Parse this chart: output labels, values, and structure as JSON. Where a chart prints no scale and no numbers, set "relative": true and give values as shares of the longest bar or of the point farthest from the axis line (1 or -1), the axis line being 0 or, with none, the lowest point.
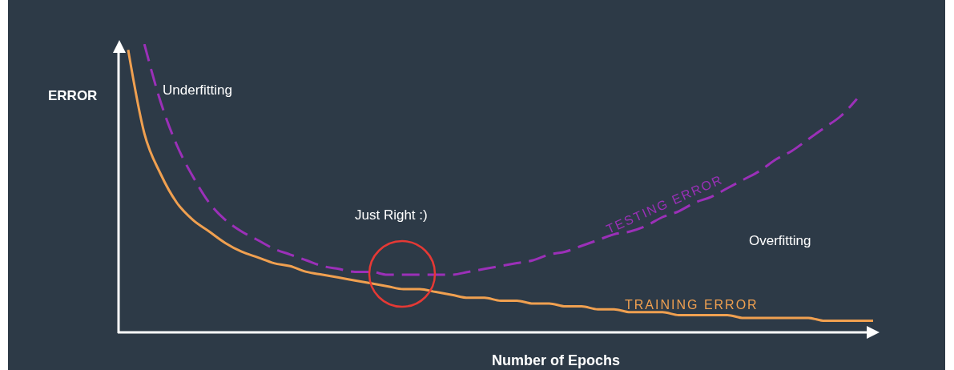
{
  "chart_data": {
    "type": "line",
    "relative": true,
    "xlabel": "Number of Epochs",
    "ylabel": "ERROR",
    "annotations": [
      "Underfitting",
      "Just Right :)",
      "Overfitting"
    ],
    "categories": [
      null,
      null,
      null,
      null,
      null,
      null,
      null,
      null,
      null,
      null,
      null,
      null,
      null,
      null,
      null,
      null,
      null,
      null,
      null,
      null,
      null,
      null,
      null,
      null,
      null,
      null,
      null,
      null,
      null,
      null,
      null,
      null,
      null,
      null,
      null,
      null,
      null,
      null,
      null,
      null,
      null,
      null,
      null,
      null,
      null,
      null,
      null
    ],
    "series": [
      {
        "name": "TESTING ERROR",
        "color": "#9b30b8",
        "line_style": "dashed",
        "values": [
          null,
          1.0,
          0.8,
          0.65,
          0.54,
          0.45,
          0.39,
          0.35,
          0.32,
          0.29,
          0.27,
          0.25,
          0.23,
          0.22,
          0.21,
          0.21,
          0.2,
          0.2,
          0.2,
          0.2,
          0.2,
          0.21,
          0.22,
          0.23,
          0.24,
          0.25,
          0.27,
          0.28,
          0.3,
          0.32,
          0.34,
          0.35,
          0.37,
          0.4,
          0.42,
          0.45,
          0.47,
          0.5,
          0.53,
          0.56,
          0.6,
          0.63,
          0.67,
          0.71,
          0.75,
          0.81,
          null
        ]
      },
      {
        "name": "TRAINING ERROR",
        "color": "#f0a050",
        "line_style": "solid",
        "values": [
          0.98,
          0.69,
          0.55,
          0.45,
          0.39,
          0.35,
          0.31,
          0.28,
          0.26,
          0.24,
          0.23,
          0.21,
          0.2,
          0.19,
          0.18,
          0.17,
          0.16,
          0.15,
          0.15,
          0.14,
          0.13,
          0.12,
          0.12,
          0.11,
          0.11,
          0.1,
          0.1,
          0.09,
          0.09,
          0.08,
          0.08,
          0.07,
          0.07,
          0.07,
          0.06,
          0.06,
          0.06,
          0.06,
          0.05,
          0.05,
          0.05,
          0.05,
          0.05,
          0.04,
          0.04,
          0.04,
          0.04
        ]
      }
    ],
    "grid": false,
    "legend": false,
    "marker": "none"
  }
}
